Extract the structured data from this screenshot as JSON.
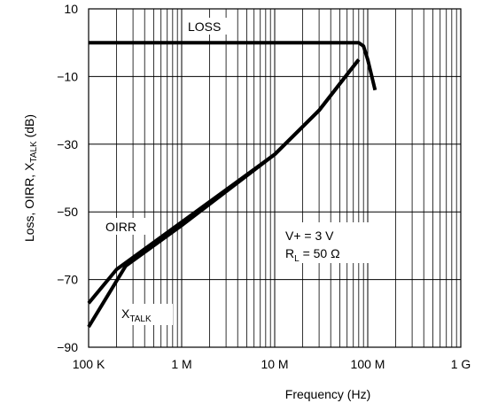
{
  "chart_data": {
    "type": "line",
    "xlabel": "Frequency (Hz)",
    "ylabel": {
      "pre": "Loss, OIRR, X",
      "sub": "TALK",
      "post": "  (dB)"
    },
    "x_scale": "log",
    "xlim": [
      100000,
      1000000000
    ],
    "ylim": [
      -90,
      10
    ],
    "grid": true,
    "x_ticks": [
      {
        "value": 100000,
        "label": "100 K"
      },
      {
        "value": 1000000,
        "label": "1 M"
      },
      {
        "value": 10000000,
        "label": "10 M"
      },
      {
        "value": 100000000,
        "label": "100 M"
      },
      {
        "value": 1000000000,
        "label": "1 G"
      }
    ],
    "y_ticks": [
      {
        "value": 10,
        "label": "10"
      },
      {
        "value": -10,
        "label": "−10"
      },
      {
        "value": -30,
        "label": "−30"
      },
      {
        "value": -50,
        "label": "−50"
      },
      {
        "value": -70,
        "label": "−70"
      },
      {
        "value": -90,
        "label": "−90"
      }
    ],
    "series": [
      {
        "name": "LOSS",
        "x": [
          100000,
          1000000,
          10000000,
          70000000,
          80000000,
          90000000,
          100000000,
          120000000
        ],
        "y": [
          0,
          0,
          0,
          0,
          0,
          -1,
          -5,
          -14
        ]
      },
      {
        "name": "OIRR",
        "x": [
          100000,
          200000,
          1000000,
          10000000,
          30000000,
          80000000
        ],
        "y": [
          -77,
          -67,
          -53,
          -33,
          -20,
          -5
        ]
      },
      {
        "name": "X",
        "name_sub": "TALK",
        "x": [
          100000,
          250000,
          1000000,
          10000000,
          30000000,
          80000000
        ],
        "y": [
          -84,
          -66,
          -54,
          -33,
          -20,
          -5
        ]
      }
    ],
    "annotations": {
      "vplus": "V+ = 3 V",
      "rl_pre": "R",
      "rl_sub": "L",
      "rl_post": " = 50 Ω"
    }
  }
}
